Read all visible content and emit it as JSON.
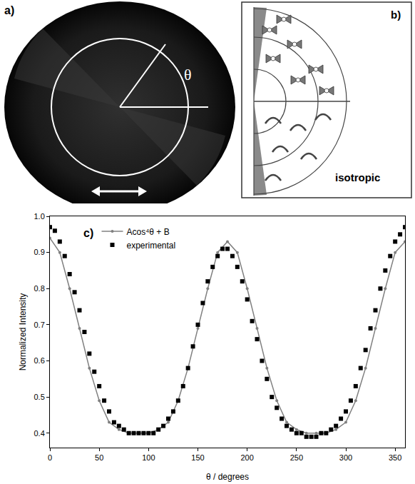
{
  "panels": {
    "a": {
      "label": "a)",
      "angle": "θ"
    },
    "b": {
      "label": "b)",
      "phase": "isotropic"
    }
  },
  "chart_data": {
    "type": "scatter",
    "annotations": [
      "c)"
    ],
    "x_label": "θ / degrees",
    "y_label": "Normalized Intensity",
    "xlim": [
      0,
      360
    ],
    "xticks": [
      0,
      50,
      100,
      150,
      200,
      250,
      300,
      350
    ],
    "ylim": [
      0.36,
      1.0
    ],
    "yticks": [
      0.4,
      0.5,
      0.6,
      0.7,
      0.8,
      0.9,
      {
        "value": 1.0,
        "label": "1.0"
      }
    ],
    "grid": false,
    "legend": "top",
    "series": [
      {
        "name": "Acos⁴θ + B",
        "color": "#808080",
        "type": "line",
        "marker": "circle",
        "x": [
          0,
          10,
          20,
          30,
          40,
          50,
          60,
          70,
          80,
          90,
          100,
          110,
          120,
          130,
          140,
          150,
          160,
          170,
          180,
          190,
          200,
          210,
          220,
          230,
          240,
          250,
          260,
          270,
          280,
          290,
          300,
          310,
          320,
          330,
          340,
          350,
          360
        ],
        "values": [
          0.94,
          0.9,
          0.8,
          0.69,
          0.58,
          0.49,
          0.43,
          0.41,
          0.4,
          0.4,
          0.4,
          0.41,
          0.43,
          0.49,
          0.58,
          0.69,
          0.8,
          0.9,
          0.93,
          0.9,
          0.8,
          0.69,
          0.58,
          0.49,
          0.43,
          0.41,
          0.4,
          0.4,
          0.4,
          0.41,
          0.43,
          0.49,
          0.58,
          0.69,
          0.8,
          0.9,
          0.93
        ]
      },
      {
        "name": "experimental",
        "color": "#000000",
        "type": "scatter",
        "marker": "square",
        "x": [
          0,
          5,
          10,
          15,
          20,
          25,
          30,
          35,
          40,
          45,
          50,
          55,
          60,
          65,
          70,
          75,
          80,
          85,
          90,
          95,
          100,
          105,
          110,
          115,
          120,
          125,
          130,
          135,
          140,
          145,
          150,
          155,
          160,
          165,
          170,
          175,
          180,
          185,
          190,
          195,
          200,
          205,
          210,
          215,
          220,
          225,
          230,
          235,
          240,
          245,
          250,
          255,
          260,
          265,
          270,
          275,
          280,
          285,
          290,
          295,
          300,
          305,
          310,
          315,
          320,
          325,
          330,
          335,
          340,
          345,
          350,
          355,
          360
        ],
        "values": [
          0.97,
          0.96,
          0.93,
          0.89,
          0.84,
          0.79,
          0.74,
          0.68,
          0.62,
          0.57,
          0.53,
          0.49,
          0.46,
          0.43,
          0.42,
          0.41,
          0.4,
          0.4,
          0.4,
          0.4,
          0.4,
          0.4,
          0.41,
          0.42,
          0.44,
          0.46,
          0.49,
          0.53,
          0.58,
          0.64,
          0.7,
          0.76,
          0.82,
          0.86,
          0.89,
          0.91,
          0.91,
          0.89,
          0.86,
          0.82,
          0.77,
          0.71,
          0.66,
          0.6,
          0.55,
          0.5,
          0.47,
          0.44,
          0.42,
          0.41,
          0.4,
          0.4,
          0.39,
          0.39,
          0.39,
          0.4,
          0.4,
          0.41,
          0.42,
          0.44,
          0.46,
          0.49,
          0.53,
          0.58,
          0.63,
          0.69,
          0.74,
          0.8,
          0.85,
          0.89,
          0.93,
          0.95,
          0.97
        ]
      }
    ]
  }
}
